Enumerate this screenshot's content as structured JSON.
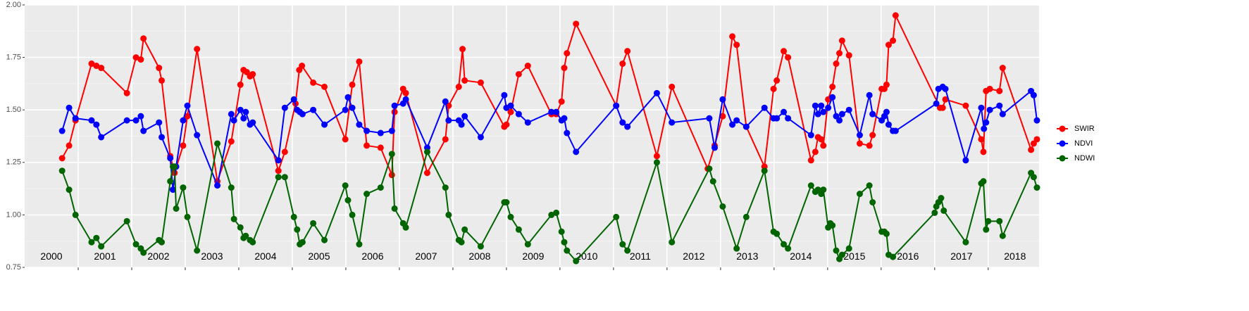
{
  "chart_data": {
    "type": "line",
    "xlim": [
      2000,
      2018.95
    ],
    "xticks": [
      2001,
      2002,
      2003,
      2004,
      2005,
      2006,
      2007,
      2008,
      2009,
      2010,
      2011,
      2012,
      2013,
      2014,
      2015,
      2016,
      2017,
      2018
    ],
    "ylim": [
      0.75,
      2
    ],
    "yticks": [
      0.75,
      {
        "value": 1,
        "label": "1.00"
      },
      1.25,
      {
        "value": 1.5,
        "label": "1.50"
      },
      1.75,
      {
        "value": 2,
        "label": "2.00"
      }
    ],
    "grid": true,
    "legend": "right",
    "annotations": {
      "x": [
        2000.5,
        2001.5,
        2002.5,
        2003.5,
        2004.5,
        2005.5,
        2006.5,
        2007.5,
        2008.5,
        2009.5,
        2010.5,
        2011.5,
        2012.5,
        2013.5,
        2014.5,
        2015.5,
        2016.5,
        2017.5,
        2018.5
      ],
      "y": 0.8,
      "labels": [
        "2000",
        "2001",
        "2002",
        "2003",
        "2004",
        "2005",
        "2006",
        "2007",
        "2008",
        "2009",
        "2010",
        "2011",
        "2012",
        "2013",
        "2014",
        "2015",
        "2016",
        "2017",
        "2018"
      ]
    },
    "series": [
      {
        "name": "SWIR",
        "color": "#ff0000",
        "x": [
          2000.7,
          2000.83,
          2000.95,
          2001.25,
          2001.34,
          2001.43,
          2001.91,
          2002.08,
          2002.17,
          2002.22,
          2002.51,
          2002.56,
          2002.72,
          2002.8,
          2002.96,
          2003.04,
          2003.22,
          2003.6,
          2003.86,
          2004.03,
          2004.09,
          2004.15,
          2004.21,
          2004.26,
          2004.74,
          2004.86,
          2005.06,
          2005.13,
          2005.18,
          2005.39,
          2005.6,
          2005.99,
          2006.12,
          2006.25,
          2006.39,
          2006.65,
          2006.86,
          2006.91,
          2007.07,
          2007.12,
          2007.52,
          2007.86,
          2007.92,
          2008.11,
          2008.18,
          2008.22,
          2008.52,
          2008.96,
          2009.0,
          2009.08,
          2009.23,
          2009.4,
          2009.84,
          2009.93,
          2010.03,
          2010.08,
          2010.13,
          2010.3,
          2011.05,
          2011.17,
          2011.26,
          2011.81,
          2012.09,
          2012.76,
          2012.89,
          2013.04,
          2013.22,
          2013.3,
          2013.48,
          2013.82,
          2013.99,
          2014.05,
          2014.18,
          2014.26,
          2014.69,
          2014.77,
          2014.82,
          2014.88,
          2014.92,
          2015.01,
          2015.09,
          2015.16,
          2015.22,
          2015.27,
          2015.4,
          2015.6,
          2015.78,
          2015.84,
          2016.01,
          2016.06,
          2016.1,
          2016.14,
          2016.22,
          2016.27,
          2017.1,
          2017.15,
          2017.2,
          2017.58,
          2017.87,
          2017.91,
          2017.96,
          2018.03,
          2018.21,
          2018.27,
          2018.8,
          2018.85,
          2018.91
        ],
        "values": [
          1.27,
          1.33,
          1.45,
          1.72,
          1.71,
          1.7,
          1.58,
          1.75,
          1.74,
          1.84,
          1.7,
          1.64,
          1.28,
          1.2,
          1.33,
          1.47,
          1.79,
          1.16,
          1.35,
          1.62,
          1.69,
          1.68,
          1.66,
          1.67,
          1.21,
          1.3,
          1.53,
          1.69,
          1.71,
          1.63,
          1.61,
          1.36,
          1.62,
          1.73,
          1.33,
          1.32,
          1.19,
          1.49,
          1.6,
          1.58,
          1.2,
          1.36,
          1.52,
          1.61,
          1.79,
          1.64,
          1.63,
          1.42,
          1.43,
          1.49,
          1.67,
          1.71,
          1.48,
          1.48,
          1.54,
          1.7,
          1.77,
          1.91,
          1.52,
          1.72,
          1.78,
          1.28,
          1.61,
          1.22,
          1.33,
          1.47,
          1.85,
          1.81,
          1.42,
          1.23,
          1.6,
          1.64,
          1.78,
          1.75,
          1.26,
          1.3,
          1.37,
          1.36,
          1.33,
          1.55,
          1.61,
          1.72,
          1.77,
          1.83,
          1.76,
          1.34,
          1.33,
          1.38,
          1.6,
          1.6,
          1.62,
          1.81,
          1.83,
          1.95,
          1.51,
          1.51,
          1.55,
          1.52,
          1.36,
          1.3,
          1.59,
          1.6,
          1.59,
          1.7,
          1.31,
          1.34,
          1.36
        ]
      },
      {
        "name": "NDVI",
        "color": "#0000ff",
        "x": [
          2000.7,
          2000.83,
          2000.95,
          2001.25,
          2001.34,
          2001.43,
          2001.91,
          2002.08,
          2002.17,
          2002.22,
          2002.51,
          2002.56,
          2002.72,
          2002.77,
          2002.83,
          2002.96,
          2003.04,
          2003.22,
          2003.6,
          2003.86,
          2003.91,
          2004.03,
          2004.09,
          2004.13,
          2004.21,
          2004.26,
          2004.74,
          2004.86,
          2005.03,
          2005.09,
          2005.14,
          2005.19,
          2005.39,
          2005.6,
          2005.99,
          2006.04,
          2006.12,
          2006.25,
          2006.39,
          2006.65,
          2006.86,
          2006.91,
          2007.07,
          2007.12,
          2007.52,
          2007.86,
          2007.92,
          2008.11,
          2008.16,
          2008.22,
          2008.52,
          2008.96,
          2009.0,
          2009.08,
          2009.23,
          2009.4,
          2009.84,
          2009.93,
          2010.03,
          2010.08,
          2010.13,
          2010.3,
          2011.05,
          2011.17,
          2011.26,
          2011.81,
          2012.09,
          2012.79,
          2012.89,
          2013.04,
          2013.22,
          2013.3,
          2013.48,
          2013.82,
          2013.99,
          2014.05,
          2014.18,
          2014.26,
          2014.69,
          2014.77,
          2014.82,
          2014.88,
          2014.92,
          2015.01,
          2015.09,
          2015.16,
          2015.22,
          2015.27,
          2015.4,
          2015.6,
          2015.78,
          2015.84,
          2016.01,
          2016.06,
          2016.1,
          2016.14,
          2016.22,
          2016.27,
          2017.03,
          2017.07,
          2017.15,
          2017.2,
          2017.58,
          2017.87,
          2017.92,
          2017.96,
          2018.03,
          2018.21,
          2018.27,
          2018.8,
          2018.85,
          2018.91
        ],
        "values": [
          1.4,
          1.51,
          1.46,
          1.45,
          1.43,
          1.37,
          1.45,
          1.45,
          1.47,
          1.4,
          1.44,
          1.37,
          1.27,
          1.12,
          1.23,
          1.45,
          1.52,
          1.38,
          1.14,
          1.48,
          1.45,
          1.5,
          1.46,
          1.49,
          1.43,
          1.44,
          1.26,
          1.51,
          1.55,
          1.5,
          1.49,
          1.48,
          1.5,
          1.43,
          1.5,
          1.56,
          1.51,
          1.43,
          1.4,
          1.39,
          1.4,
          1.52,
          1.53,
          1.55,
          1.32,
          1.54,
          1.45,
          1.45,
          1.43,
          1.47,
          1.37,
          1.57,
          1.51,
          1.52,
          1.48,
          1.44,
          1.49,
          1.49,
          1.45,
          1.46,
          1.39,
          1.3,
          1.52,
          1.44,
          1.42,
          1.58,
          1.44,
          1.46,
          1.32,
          1.55,
          1.43,
          1.45,
          1.42,
          1.51,
          1.46,
          1.46,
          1.49,
          1.46,
          1.38,
          1.52,
          1.48,
          1.52,
          1.49,
          1.51,
          1.56,
          1.47,
          1.45,
          1.48,
          1.5,
          1.38,
          1.57,
          1.48,
          1.45,
          1.47,
          1.49,
          1.43,
          1.4,
          1.4,
          1.53,
          1.6,
          1.61,
          1.6,
          1.26,
          1.51,
          1.41,
          1.44,
          1.5,
          1.52,
          1.48,
          1.59,
          1.57,
          1.45
        ]
      },
      {
        "name": "NDWI",
        "color": "#006400",
        "x": [
          2000.7,
          2000.83,
          2000.95,
          2001.25,
          2001.34,
          2001.43,
          2001.91,
          2002.08,
          2002.17,
          2002.22,
          2002.51,
          2002.56,
          2002.72,
          2002.77,
          2002.8,
          2002.83,
          2002.96,
          2003.04,
          2003.22,
          2003.6,
          2003.86,
          2003.91,
          2004.03,
          2004.09,
          2004.13,
          2004.21,
          2004.26,
          2004.74,
          2004.86,
          2005.03,
          2005.09,
          2005.14,
          2005.19,
          2005.39,
          2005.6,
          2005.99,
          2006.04,
          2006.12,
          2006.25,
          2006.39,
          2006.65,
          2006.86,
          2006.91,
          2007.07,
          2007.12,
          2007.52,
          2007.86,
          2007.92,
          2008.11,
          2008.16,
          2008.22,
          2008.52,
          2008.96,
          2009.0,
          2009.08,
          2009.23,
          2009.4,
          2009.84,
          2009.93,
          2010.03,
          2010.08,
          2010.13,
          2010.3,
          2011.05,
          2011.17,
          2011.26,
          2011.81,
          2012.09,
          2012.79,
          2012.86,
          2013.04,
          2013.3,
          2013.48,
          2013.82,
          2013.99,
          2014.05,
          2014.18,
          2014.26,
          2014.69,
          2014.77,
          2014.82,
          2014.88,
          2014.92,
          2015.01,
          2015.05,
          2015.09,
          2015.16,
          2015.22,
          2015.27,
          2015.4,
          2015.6,
          2015.78,
          2015.84,
          2016.01,
          2016.06,
          2016.1,
          2016.14,
          2016.22,
          2017.0,
          2017.03,
          2017.07,
          2017.12,
          2017.17,
          2017.58,
          2017.87,
          2017.91,
          2017.96,
          2018.0,
          2018.21,
          2018.27,
          2018.8,
          2018.85,
          2018.91
        ],
        "values": [
          1.21,
          1.12,
          1.0,
          0.87,
          0.89,
          0.85,
          0.97,
          0.86,
          0.84,
          0.82,
          0.88,
          0.87,
          1.16,
          1.23,
          1.23,
          1.03,
          1.13,
          0.99,
          0.83,
          1.34,
          1.13,
          0.98,
          0.94,
          0.89,
          0.9,
          0.88,
          0.87,
          1.18,
          1.18,
          0.99,
          0.93,
          0.86,
          0.87,
          0.96,
          0.88,
          1.14,
          1.07,
          1.0,
          0.86,
          1.1,
          1.13,
          1.29,
          1.03,
          0.96,
          0.94,
          1.3,
          1.13,
          1.0,
          0.88,
          0.87,
          0.93,
          0.85,
          1.06,
          1.06,
          0.99,
          0.93,
          0.86,
          1.0,
          1.01,
          0.92,
          0.87,
          0.83,
          0.78,
          0.99,
          0.86,
          0.83,
          1.25,
          0.87,
          1.22,
          1.16,
          1.04,
          0.84,
          0.99,
          1.21,
          0.92,
          0.91,
          0.86,
          0.84,
          1.14,
          1.11,
          1.12,
          1.1,
          1.12,
          0.94,
          0.96,
          0.95,
          0.83,
          0.79,
          0.81,
          0.84,
          1.1,
          1.14,
          1.06,
          0.92,
          0.92,
          0.91,
          0.81,
          0.8,
          1.01,
          1.04,
          1.06,
          1.08,
          1.02,
          0.87,
          1.15,
          1.16,
          0.93,
          0.97,
          0.97,
          0.9,
          1.2,
          1.18,
          1.13
        ]
      }
    ]
  }
}
